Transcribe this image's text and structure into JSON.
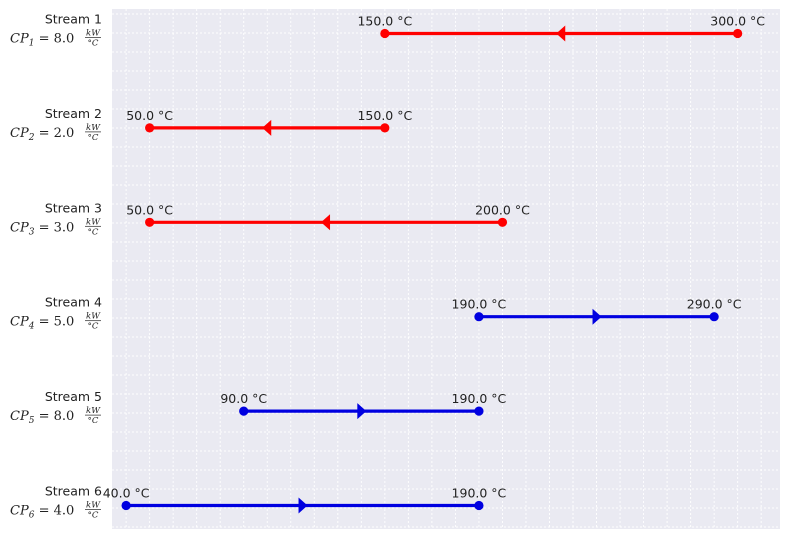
{
  "colors": {
    "hot": "#ff0000",
    "cold": "#0000e0",
    "plot_bg": "#eaeaf2",
    "grid": "#ffffff"
  },
  "chart_data": {
    "type": "line",
    "title": "",
    "xlabel": "",
    "ylabel": "",
    "xlim": [
      34,
      318
    ],
    "grid": true,
    "temp_unit": "°C",
    "cp_unit_num": "kW",
    "cp_unit_den": "°C",
    "streams": [
      {
        "name": "Stream 1",
        "cp_symbol": "CP",
        "cp_index": "1",
        "cp": "8.0",
        "t_in": 300.0,
        "t_out": 150.0,
        "t_in_label": "300.0 °C",
        "t_out_label": "150.0 °C",
        "kind": "hot"
      },
      {
        "name": "Stream 2",
        "cp_symbol": "CP",
        "cp_index": "2",
        "cp": "2.0",
        "t_in": 150.0,
        "t_out": 50.0,
        "t_in_label": "150.0 °C",
        "t_out_label": "50.0 °C",
        "kind": "hot"
      },
      {
        "name": "Stream 3",
        "cp_symbol": "CP",
        "cp_index": "3",
        "cp": "3.0",
        "t_in": 200.0,
        "t_out": 50.0,
        "t_in_label": "200.0 °C",
        "t_out_label": "50.0 °C",
        "kind": "hot"
      },
      {
        "name": "Stream 4",
        "cp_symbol": "CP",
        "cp_index": "4",
        "cp": "5.0",
        "t_in": 190.0,
        "t_out": 290.0,
        "t_in_label": "190.0 °C",
        "t_out_label": "290.0 °C",
        "kind": "cold"
      },
      {
        "name": "Stream 5",
        "cp_symbol": "CP",
        "cp_index": "5",
        "cp": "8.0",
        "t_in": 90.0,
        "t_out": 190.0,
        "t_in_label": "90.0 °C",
        "t_out_label": "190.0 °C",
        "kind": "cold"
      },
      {
        "name": "Stream 6",
        "cp_symbol": "CP",
        "cp_index": "6",
        "cp": "4.0",
        "t_in": 40.0,
        "t_out": 190.0,
        "t_in_label": "40.0 °C",
        "t_out_label": "190.0 °C",
        "kind": "cold"
      }
    ]
  }
}
